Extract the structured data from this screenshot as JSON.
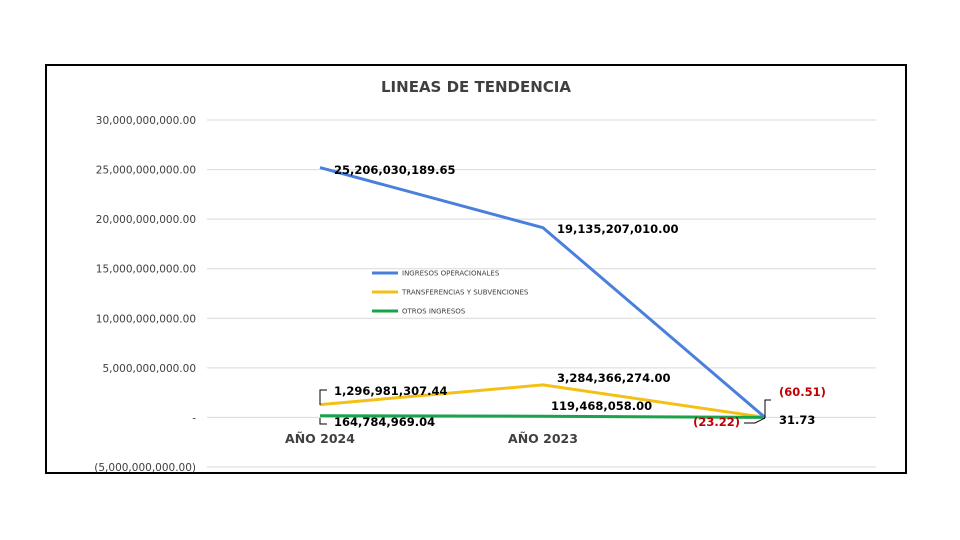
{
  "chart_data": {
    "type": "line",
    "title": "LINEAS DE TENDENCIA",
    "categories": [
      "AÑO 2024",
      "AÑO 2023",
      ""
    ],
    "ylim": [
      -5000000000,
      30000000000
    ],
    "yticks": [
      -5000000000,
      0,
      5000000000,
      10000000000,
      15000000000,
      20000000000,
      25000000000,
      30000000000
    ],
    "ytick_labels": [
      "(5,000,000,000.00)",
      "-",
      "5,000,000,000.00",
      "10,000,000,000.00",
      "15,000,000,000.00",
      "20,000,000,000.00",
      "25,000,000,000.00",
      "30,000,000,000.00"
    ],
    "grid": true,
    "legend_position": "center-left",
    "series": [
      {
        "name": "INGRESOS OPERACIONALES",
        "color": "#4a7fdc",
        "values": [
          25206030189.65,
          19135207010.0,
          -60.51
        ],
        "labels": [
          "25,206,030,189.65",
          "19,135,207,010.00",
          "(60.51)"
        ]
      },
      {
        "name": "TRANSFERENCIAS Y SUBVENCIONES",
        "color": "#f5c016",
        "values": [
          1296981307.44,
          3284366274.0,
          -23.22
        ],
        "labels": [
          "1,296,981,307.44",
          "3,284,366,274.00",
          "(23.22)"
        ]
      },
      {
        "name": "OTROS INGRESOS",
        "color": "#1aa34a",
        "values": [
          164784969.04,
          119468058.0,
          31.73
        ],
        "labels": [
          "164,784,969.04",
          "119,468,058.00",
          "31.73"
        ]
      }
    ]
  }
}
